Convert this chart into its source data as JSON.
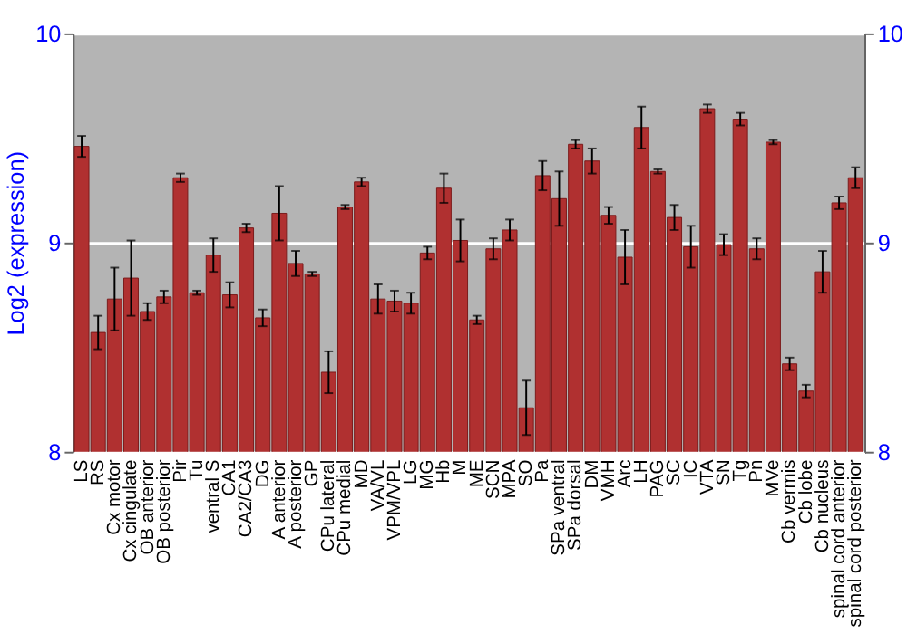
{
  "chart_data": {
    "type": "bar",
    "ylabel": "Log2 (expression)",
    "categories": [
      "LS",
      "RS",
      "Cx motor",
      "Cx cingulate",
      "OB anterior",
      "OB posterior",
      "Pir",
      "Tu",
      "ventral S",
      "CA1",
      "CA2/CA3",
      "DG",
      "A anterior",
      "A posterior",
      "GP",
      "CPu lateral",
      "CPu medial",
      "MD",
      "VA/VL",
      "VPM/VPL",
      "LG",
      "MG",
      "Hb",
      "M",
      "ME",
      "SCN",
      "MPA",
      "SO",
      "Pa",
      "SPa ventral",
      "SPa dorsal",
      "DM",
      "VMH",
      "Arc",
      "LH",
      "PAG",
      "SC",
      "IC",
      "VTA",
      "SN",
      "Tg",
      "Pn",
      "MVe",
      "Cb vermis",
      "Cb lobe",
      "Cb nucleus",
      "spinal cord anterior",
      "spinal cord posterior"
    ],
    "values": [
      9.46,
      8.57,
      8.73,
      8.83,
      8.67,
      8.74,
      9.31,
      8.76,
      8.94,
      8.75,
      9.07,
      8.64,
      9.14,
      8.9,
      8.85,
      8.38,
      9.17,
      9.29,
      8.73,
      8.72,
      8.71,
      8.95,
      9.26,
      9.01,
      8.63,
      8.97,
      9.06,
      8.21,
      9.32,
      9.21,
      9.47,
      9.39,
      9.13,
      8.93,
      9.55,
      9.34,
      9.12,
      8.98,
      9.64,
      8.99,
      9.59,
      8.97,
      9.48,
      8.42,
      8.29,
      8.86,
      9.19,
      9.31
    ],
    "errors": [
      0.05,
      0.08,
      0.15,
      0.18,
      0.04,
      0.03,
      0.02,
      0.01,
      0.08,
      0.06,
      0.02,
      0.04,
      0.13,
      0.06,
      0.01,
      0.1,
      0.01,
      0.02,
      0.07,
      0.05,
      0.05,
      0.03,
      0.07,
      0.1,
      0.02,
      0.05,
      0.05,
      0.13,
      0.07,
      0.13,
      0.02,
      0.06,
      0.04,
      0.13,
      0.1,
      0.01,
      0.06,
      0.1,
      0.02,
      0.05,
      0.03,
      0.05,
      0.01,
      0.03,
      0.03,
      0.1,
      0.03,
      0.05
    ],
    "color": "#b03030",
    "ylim": [
      8,
      10
    ],
    "yticks": [
      8,
      9,
      10
    ],
    "y2lim": [
      8,
      10
    ],
    "y2ticks": [
      8,
      9,
      10
    ],
    "grid": "y"
  }
}
